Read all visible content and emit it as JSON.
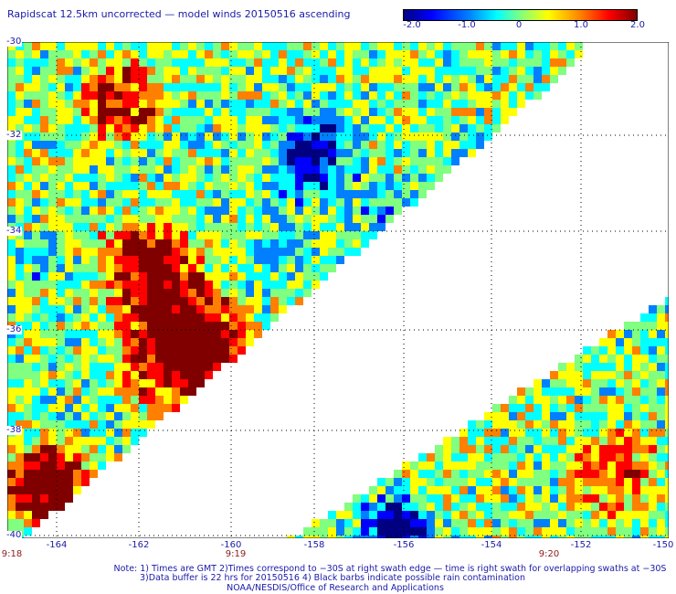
{
  "title": "Rapidscat 12.5km uncorrected — model winds 20150516 ascending",
  "colorbar": {
    "labels": [
      "-2.0",
      "-1.0",
      "0",
      "1.0",
      "2.0"
    ],
    "min": -2.0,
    "max": 2.0,
    "colors": [
      "#000080",
      "#0000ff",
      "#0080ff",
      "#00ffff",
      "#80ff80",
      "#ffff00",
      "#ff8000",
      "#ff0000",
      "#800000"
    ]
  },
  "axes": {
    "lat_labels": [
      "-30",
      "-32",
      "-34",
      "-36",
      "-38",
      "-40"
    ],
    "lat_range": [
      -30,
      -40
    ],
    "lon_labels": [
      "-164",
      "-162",
      "-160",
      "-158",
      "-156",
      "-154",
      "-152",
      "-150"
    ],
    "lon_range": [
      -164.5,
      -150
    ],
    "grid": "dotted"
  },
  "swath_times": [
    {
      "label": "9:18",
      "lon": -164.5
    },
    {
      "label": "9:19",
      "lon": -160
    },
    {
      "label": "9:20",
      "lon": -153
    }
  ],
  "notes": [
    "Note: 1) Times are GMT 2)Times correspond to −30S at right swath edge — time is right swath for overlapping swaths at −30S",
    "3)Data buffer is 22 hrs for 20150516 4) Black barbs indicate possible rain contamination",
    "NOAA/NESDIS/Office of Research and Applications"
  ],
  "legend_colors": {
    "land_bg": "#ffffff",
    "grid": "#000000",
    "label_text": "#1a1aa8",
    "time_text": "#8b1a1a"
  }
}
